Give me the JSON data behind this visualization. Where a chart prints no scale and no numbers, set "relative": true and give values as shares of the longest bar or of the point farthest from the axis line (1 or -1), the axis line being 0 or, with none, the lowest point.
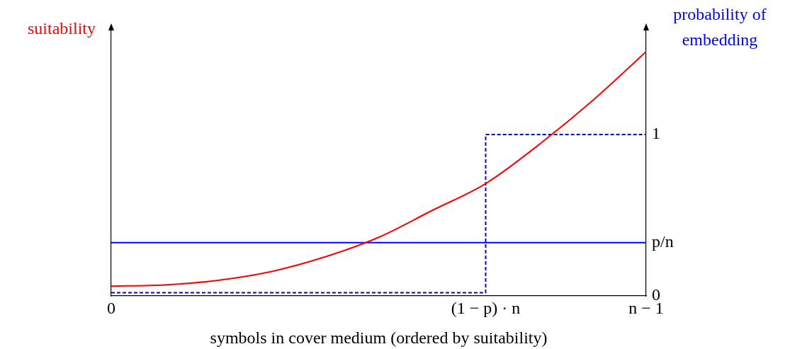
{
  "chart_data": {
    "type": "line",
    "relative": true,
    "ylabel": "suitability",
    "y2label": "probability of embedding",
    "xlabel": "symbols in cover medium (ordered by suitability)",
    "categories": [
      "0",
      null,
      null,
      null,
      null,
      null,
      null,
      "(1 − p) · n",
      null,
      null,
      "n − 1"
    ],
    "y2lim": [
      0,
      1.65
    ],
    "y2ticks": [
      0,
      {
        "value": 0.33,
        "label": "p/n"
      },
      1
    ],
    "grid": false,
    "legend": false,
    "marker": "none",
    "series": [
      {
        "color": "#ff0000",
        "values": [
          0.04,
          0.045,
          0.064,
          0.1,
          0.16,
          0.24,
          0.35,
          0.46,
          0.62,
          0.8,
          1
        ]
      },
      {
        "color": "#0000ff",
        "axis": "y2",
        "values": [
          0.33,
          0.33,
          0.33,
          0.33,
          0.33,
          0.33,
          0.33,
          0.33,
          0.33,
          0.33,
          0.33
        ]
      },
      {
        "color": "#0000ff",
        "axis": "y2",
        "type": "step",
        "line_style": "dashed",
        "values": [
          0.02,
          0.02,
          0.02,
          0.02,
          0.02,
          0.02,
          0.02,
          1,
          1,
          1,
          1
        ]
      }
    ]
  }
}
